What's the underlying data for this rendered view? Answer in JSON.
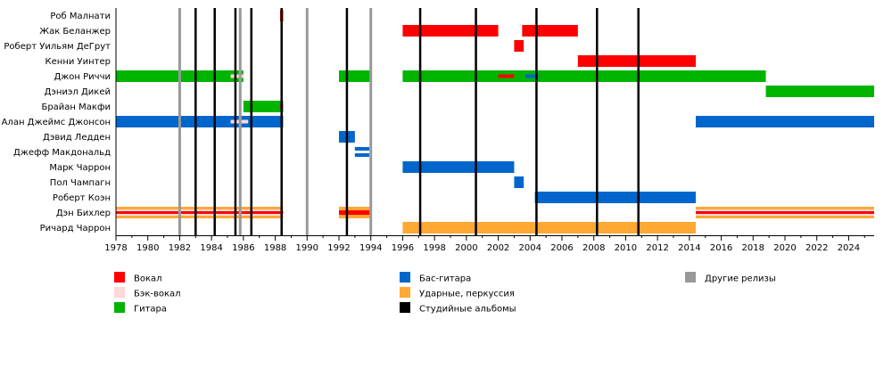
{
  "chart_data": {
    "type": "timeline",
    "xlim": [
      1978,
      2025.6
    ],
    "ticks": [
      1978,
      1980,
      1982,
      1984,
      1986,
      1988,
      1990,
      1992,
      1994,
      1996,
      1998,
      2000,
      2002,
      2004,
      2006,
      2008,
      2010,
      2012,
      2014,
      2016,
      2018,
      2020,
      2022,
      2024
    ],
    "colors": {
      "vocals": "#ff0000",
      "backing": "#ffd8dc",
      "guitar": "#00b400",
      "bass": "#0066cc",
      "drums": "#ffa833",
      "studio": "#000000",
      "other": "#999999"
    },
    "members": [
      "Роб Малнати",
      "Жак Беланжер",
      "Роберт Уильям ДеГрут",
      "Кенни Уинтер",
      "Джон Риччи",
      "Дэниэл Дикей",
      "Брайан Макфи",
      "Алан Джеймс Джонсон",
      "Дэвид Ледден",
      "Джефф Макдональд",
      "Марк Чаррон",
      "Пол Чампагн",
      "Роберт Коэн",
      "Дэн Бихлер",
      "Ричард  Чаррон"
    ],
    "bars": [
      {
        "row": 0,
        "from": 1988.3,
        "to": 1988.5,
        "role": "vocals"
      },
      {
        "row": 1,
        "from": 1996.0,
        "to": 2002.0,
        "role": "vocals"
      },
      {
        "row": 1,
        "from": 2003.5,
        "to": 2007.0,
        "role": "vocals"
      },
      {
        "row": 2,
        "from": 2003.0,
        "to": 2003.6,
        "role": "vocals"
      },
      {
        "row": 3,
        "from": 2007.0,
        "to": 2014.4,
        "role": "vocals"
      },
      {
        "row": 4,
        "from": 1978.0,
        "to": 1986.0,
        "role": "guitar"
      },
      {
        "row": 4,
        "from": 1985.2,
        "to": 1986.0,
        "role": "backing",
        "thin": true
      },
      {
        "row": 4,
        "from": 1992.0,
        "to": 1994.0,
        "role": "guitar"
      },
      {
        "row": 4,
        "from": 1996.0,
        "to": 2018.8,
        "role": "guitar"
      },
      {
        "row": 4,
        "from": 2002.0,
        "to": 2003.0,
        "role": "vocals",
        "thin": true
      },
      {
        "row": 4,
        "from": 2003.7,
        "to": 2004.5,
        "role": "bass",
        "thin": true
      },
      {
        "row": 5,
        "from": 2018.8,
        "to": 2025.6,
        "role": "guitar"
      },
      {
        "row": 6,
        "from": 1986.0,
        "to": 1988.5,
        "role": "guitar"
      },
      {
        "row": 6,
        "from": 1988.3,
        "to": 1988.5,
        "role": "vocals",
        "thin": true
      },
      {
        "row": 7,
        "from": 1978.0,
        "to": 1988.5,
        "role": "bass"
      },
      {
        "row": 7,
        "from": 1985.2,
        "to": 1986.3,
        "role": "backing",
        "thin": true
      },
      {
        "row": 7,
        "from": 2014.4,
        "to": 2025.6,
        "role": "bass"
      },
      {
        "row": 8,
        "from": 1992.0,
        "to": 1993.0,
        "role": "bass"
      },
      {
        "row": 9,
        "from": 1993.0,
        "to": 1993.9,
        "role": "bass",
        "split": true
      },
      {
        "row": 10,
        "from": 1996.0,
        "to": 2003.0,
        "role": "bass"
      },
      {
        "row": 11,
        "from": 2003.0,
        "to": 2003.6,
        "role": "bass"
      },
      {
        "row": 12,
        "from": 2004.3,
        "to": 2014.4,
        "role": "bass"
      },
      {
        "row": 13,
        "from": 1978.0,
        "to": 1988.5,
        "role": "drums",
        "stripe": [
          "backing",
          "vocals"
        ]
      },
      {
        "row": 13,
        "from": 1992.0,
        "to": 1994.0,
        "role": "drums",
        "stripe": [
          "vocals"
        ]
      },
      {
        "row": 13,
        "from": 2014.4,
        "to": 2025.6,
        "role": "drums",
        "stripe": [
          "backing",
          "vocals"
        ]
      },
      {
        "row": 14,
        "from": 1996.0,
        "to": 2014.4,
        "role": "drums"
      }
    ],
    "other_releases": [
      1982.0,
      1985.8,
      1990.0,
      1994.0
    ],
    "studio_albums": [
      1983.0,
      1984.2,
      1985.5,
      1986.5,
      1988.4,
      1992.5,
      1997.1,
      2000.6,
      2004.4,
      2008.2,
      2010.8
    ]
  },
  "legend": [
    {
      "label": "Вокал",
      "color": "#ff0000"
    },
    {
      "label": "Бэк-вокал",
      "color": "#ffd8dc"
    },
    {
      "label": "Гитара",
      "color": "#00b400"
    },
    {
      "label": "Бас-гитара",
      "color": "#0066cc"
    },
    {
      "label": "Ударные, перкуссия",
      "color": "#ffa833"
    },
    {
      "label": "Студийные альбомы",
      "color": "#000000"
    },
    {
      "label": "Другие релизы",
      "color": "#999999"
    }
  ]
}
